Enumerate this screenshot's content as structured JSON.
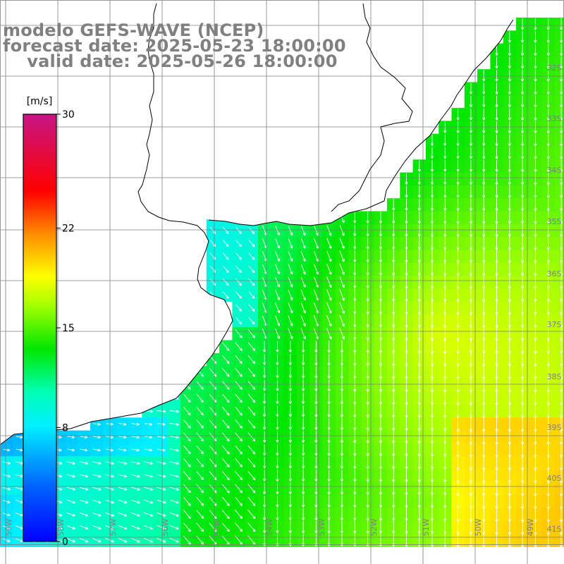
{
  "header": {
    "model": "modelo GEFS-WAVE (NCEP)",
    "forecast": "forecast date: 2025-05-23 18:00:00",
    "valid": "    valid date: 2025-05-26 18:00:00"
  },
  "colorbar": {
    "unit": "[m/s]",
    "ticks": [
      {
        "value": 30,
        "label": "30"
      },
      {
        "value": 22,
        "label": "22"
      },
      {
        "value": 15,
        "label": "15"
      },
      {
        "value": 8,
        "label": "8"
      },
      {
        "value": 0,
        "label": "0"
      }
    ],
    "min": 0,
    "max": 30,
    "colors": [
      "#0000ff",
      "#0080ff",
      "#00ffff",
      "#00ff00",
      "#ffff00",
      "#ff8000",
      "#ff0000",
      "#c71585"
    ]
  },
  "map": {
    "lat_labels": [
      "32S",
      "33S",
      "34S",
      "35S",
      "36S",
      "37S",
      "38S",
      "39S",
      "40S",
      "41S"
    ],
    "lon_labels": [
      "59W",
      "58W",
      "57W",
      "56W",
      "55W",
      "54W",
      "53W",
      "52W",
      "51W",
      "50W",
      "49W"
    ],
    "wind_field": "wind speed (m/s) with direction arrows",
    "land_color": "#ffffff",
    "arrow_color": "#ffffff",
    "grid_color": "#7f7f7f",
    "coast_color": "#000000"
  }
}
